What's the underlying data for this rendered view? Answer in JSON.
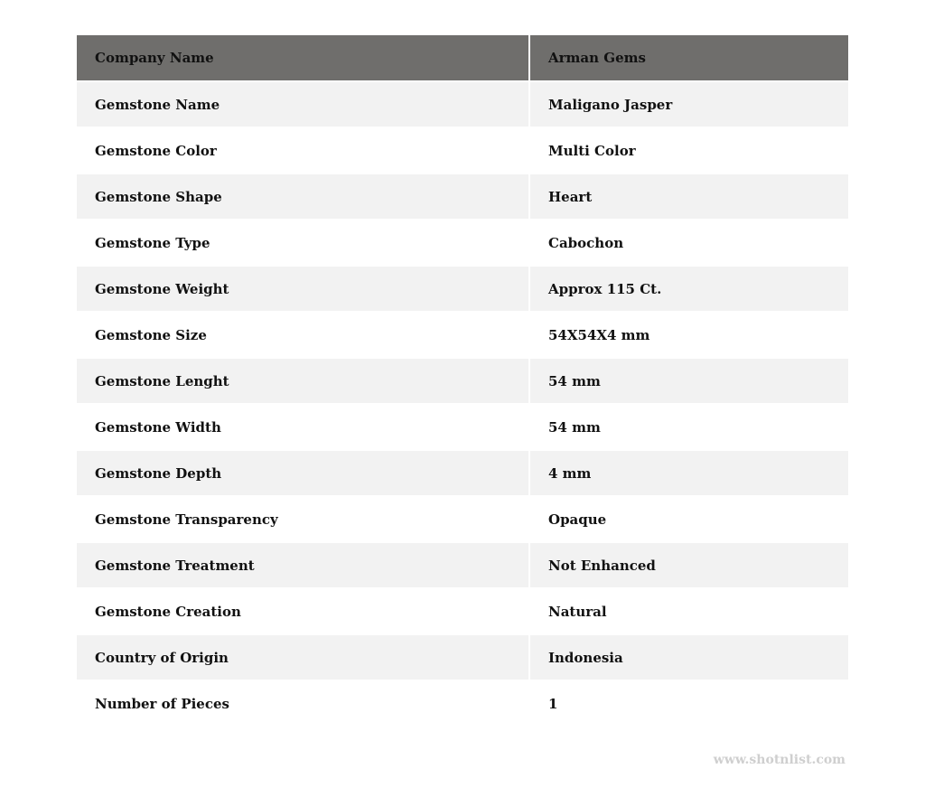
{
  "header": {
    "key": "Company Name",
    "value": "Arman Gems"
  },
  "rows": [
    {
      "key": "Gemstone Name",
      "value": "Maligano Jasper"
    },
    {
      "key": "Gemstone Color",
      "value": "Multi Color"
    },
    {
      "key": "Gemstone Shape",
      "value": "Heart"
    },
    {
      "key": "Gemstone Type",
      "value": "Cabochon"
    },
    {
      "key": "Gemstone Weight",
      "value": "Approx 115 Ct."
    },
    {
      "key": "Gemstone Size",
      "value": "54X54X4 mm"
    },
    {
      "key": "Gemstone Lenght",
      "value": "54 mm"
    },
    {
      "key": "Gemstone Width",
      "value": "54 mm"
    },
    {
      "key": "Gemstone Depth",
      "value": "4 mm"
    },
    {
      "key": "Gemstone Transparency",
      "value": "Opaque"
    },
    {
      "key": "Gemstone Treatment",
      "value": "Not Enhanced"
    },
    {
      "key": "Gemstone Creation",
      "value": "Natural"
    },
    {
      "key": "Country of Origin",
      "value": "Indonesia"
    },
    {
      "key": "Number of Pieces",
      "value": "1"
    }
  ],
  "watermark": "www.shotnlist.com",
  "colors": {
    "header_bg": "#6f6e6c",
    "alt_row_bg": "#f2f2f2"
  }
}
